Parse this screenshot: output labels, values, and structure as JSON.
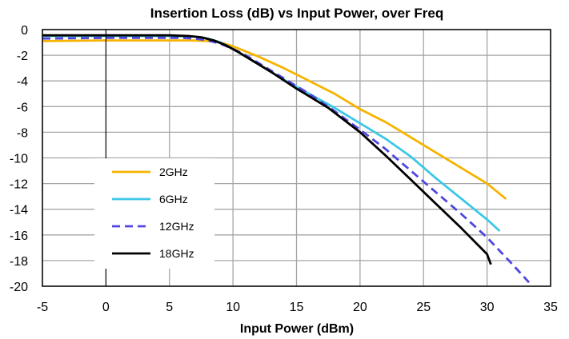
{
  "chart_data": {
    "type": "line",
    "title": "Insertion Loss (dB) vs Input Power, over Freq",
    "xlabel": "Input Power (dBm)",
    "ylabel": "",
    "xlim": [
      -5,
      35
    ],
    "ylim": [
      -20,
      0
    ],
    "xticks": [
      "-5",
      "0",
      "5",
      "10",
      "15",
      "20",
      "25",
      "30",
      "35"
    ],
    "yticks": [
      "0",
      "-2",
      "-4",
      "-6",
      "-8",
      "-10",
      "-12",
      "-14",
      "-16",
      "-18",
      "-20"
    ],
    "grid": true,
    "legend_position": "bottom-left",
    "series": [
      {
        "name": "2GHz",
        "color": "#F6B400",
        "dash": "solid",
        "x": [
          -5,
          0,
          5,
          7,
          8,
          9,
          10,
          11,
          12,
          14,
          16,
          18,
          20,
          22,
          24,
          26,
          28,
          30,
          31.5
        ],
        "y": [
          -0.9,
          -0.85,
          -0.85,
          -0.85,
          -0.9,
          -1.0,
          -1.3,
          -1.7,
          -2.1,
          -3.0,
          -4.0,
          -5.0,
          -6.2,
          -7.2,
          -8.4,
          -9.6,
          -10.8,
          -12.0,
          -13.2
        ]
      },
      {
        "name": "6GHz",
        "color": "#3CC8E6",
        "dash": "solid",
        "x": [
          -5,
          0,
          5,
          7,
          8,
          9,
          10,
          11,
          12,
          14,
          16,
          18,
          20,
          22,
          24,
          26,
          28,
          30,
          31
        ],
        "y": [
          -0.5,
          -0.5,
          -0.5,
          -0.55,
          -0.7,
          -1.0,
          -1.5,
          -2.1,
          -2.7,
          -3.9,
          -5.0,
          -6.1,
          -7.3,
          -8.5,
          -9.9,
          -11.6,
          -13.2,
          -14.8,
          -15.7
        ]
      },
      {
        "name": "12GHz",
        "color": "#5046E0",
        "dash": "dashed",
        "x": [
          -5,
          0,
          5,
          6,
          7,
          8,
          9,
          10,
          11,
          12,
          14,
          16,
          17.5,
          20,
          22,
          24,
          26,
          28,
          30,
          32,
          33.3
        ],
        "y": [
          -0.7,
          -0.65,
          -0.65,
          -0.65,
          -0.7,
          -0.85,
          -1.1,
          -1.5,
          -2.0,
          -2.6,
          -3.8,
          -5.0,
          -6.0,
          -7.8,
          -9.3,
          -11.0,
          -12.7,
          -14.4,
          -16.2,
          -18.3,
          -19.7
        ]
      },
      {
        "name": "18GHz",
        "color": "#000000",
        "dash": "solid",
        "x": [
          -5,
          0,
          5,
          6.5,
          7.5,
          8.5,
          9.5,
          10.5,
          11.5,
          13,
          15,
          17.5,
          20,
          22,
          24,
          26,
          28,
          30,
          30.3
        ],
        "y": [
          -0.45,
          -0.45,
          -0.45,
          -0.5,
          -0.6,
          -0.85,
          -1.25,
          -1.8,
          -2.4,
          -3.3,
          -4.6,
          -6.1,
          -8.0,
          -9.8,
          -11.7,
          -13.6,
          -15.5,
          -17.5,
          -18.3
        ]
      }
    ]
  }
}
